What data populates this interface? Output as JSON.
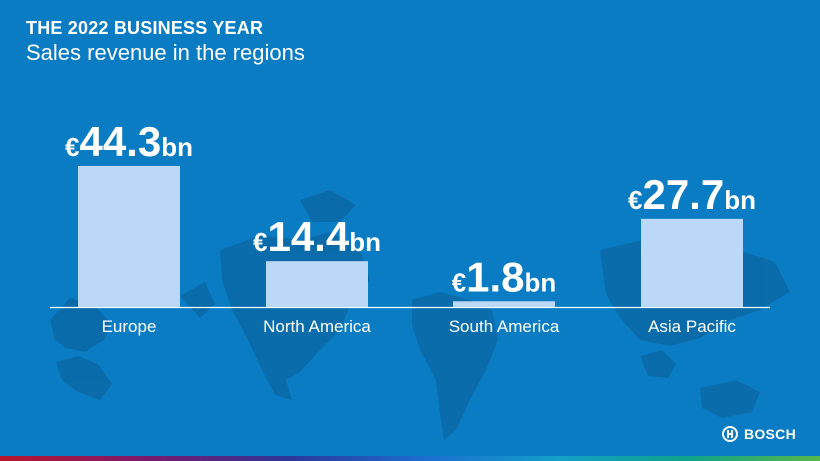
{
  "slide": {
    "heading": "THE 2022 BUSINESS YEAR",
    "subheading": "Sales revenue in the regions",
    "logo_text": "BOSCH",
    "colors": {
      "background": "#0a7cc4",
      "bar": "#bcd8f9",
      "text": "#ffffff",
      "baseline": "#ffffff",
      "map": "#0a6aa8"
    }
  },
  "chart_data": {
    "type": "bar",
    "title": "Sales revenue in the regions",
    "categories": [
      "Europe",
      "North America",
      "South America",
      "Asia Pacific"
    ],
    "values": [
      44.3,
      14.4,
      1.8,
      27.7
    ],
    "unit": "€ billion",
    "value_labels": [
      {
        "prefix": "€",
        "number": "44.3",
        "suffix": "bn"
      },
      {
        "prefix": "€",
        "number": "14.4",
        "suffix": "bn"
      },
      {
        "prefix": "€",
        "number": "1.8",
        "suffix": "bn"
      },
      {
        "prefix": "€",
        "number": "27.7",
        "suffix": "bn"
      }
    ],
    "xlabel": "",
    "ylabel": "",
    "ylim": [
      0,
      44.3
    ],
    "grid": false,
    "legend": "none"
  }
}
